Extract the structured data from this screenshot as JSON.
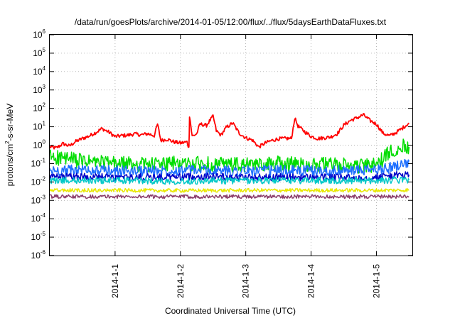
{
  "chart_data": {
    "type": "line",
    "title": "/data/run/goesPlots/archive/2014-01-05/12:00/flux/../flux/5daysEarthDataFluxes.txt",
    "xlabel": "Coordinated Universal Time (UTC)",
    "ylabel_parts": [
      "protons/cm",
      "2",
      "-s-sr-MeV"
    ],
    "x_unit": "days since 2013-12-31T00:00 UTC",
    "xlim": [
      0,
      5.55
    ],
    "x_ticks": [
      {
        "x": 1,
        "label": "2014-1-1"
      },
      {
        "x": 2,
        "label": "2014-1-2"
      },
      {
        "x": 3,
        "label": "2014-1-3"
      },
      {
        "x": 4,
        "label": "2014-1-4"
      },
      {
        "x": 5,
        "label": "2014-1-5"
      }
    ],
    "y_scale": "log",
    "ylim_exp": [
      -6,
      6
    ],
    "y_ticks": [
      {
        "exp": -6,
        "base": "10",
        "sup": "-6"
      },
      {
        "exp": -5,
        "base": "10",
        "sup": "-5"
      },
      {
        "exp": -4,
        "base": "10",
        "sup": "-4"
      },
      {
        "exp": -3,
        "base": "10",
        "sup": "-3"
      },
      {
        "exp": -2,
        "base": "10",
        "sup": "-2"
      },
      {
        "exp": -1,
        "base": "10",
        "sup": "-1"
      },
      {
        "exp": 0,
        "base": "10",
        "sup": "0"
      },
      {
        "exp": 1,
        "base": "10",
        "sup": "1"
      },
      {
        "exp": 2,
        "base": "10",
        "sup": "2"
      },
      {
        "exp": 3,
        "base": "10",
        "sup": "3"
      },
      {
        "exp": 4,
        "base": "10",
        "sup": "4"
      },
      {
        "exp": 5,
        "base": "10",
        "sup": "5"
      },
      {
        "exp": 6,
        "base": "10",
        "sup": "6"
      }
    ],
    "grid": true,
    "series": [
      {
        "color": "#ff0000",
        "x": [
          0,
          0.1,
          0.2,
          0.3,
          0.4,
          0.5,
          0.6,
          0.7,
          0.8,
          0.9,
          1.0,
          1.1,
          1.2,
          1.3,
          1.4,
          1.5,
          1.6,
          1.65,
          1.7,
          1.8,
          1.9,
          2.0,
          2.1,
          2.13,
          2.14,
          2.18,
          2.25,
          2.3,
          2.4,
          2.5,
          2.55,
          2.62,
          2.7,
          2.8,
          2.9,
          3.0,
          3.1,
          3.2,
          3.3,
          3.4,
          3.5,
          3.6,
          3.7,
          3.75,
          3.8,
          3.9,
          4.0,
          4.1,
          4.2,
          4.3,
          4.4,
          4.5,
          4.6,
          4.7,
          4.8,
          4.9,
          5.0,
          5.1,
          5.2,
          5.3,
          5.4,
          5.5
        ],
        "y": [
          0.8,
          0.7,
          1.2,
          0.9,
          1.6,
          2.3,
          3.1,
          4.8,
          8.0,
          5.2,
          2.9,
          3.3,
          3.5,
          4.1,
          3.6,
          4.2,
          3.3,
          14,
          1.8,
          2.1,
          1.5,
          1.3,
          1.5,
          0.7,
          40,
          3.0,
          4.2,
          14,
          12,
          38,
          6,
          3.5,
          9,
          16,
          4.5,
          2.5,
          1.9,
          0.8,
          1.3,
          1.8,
          2.2,
          2.3,
          2.3,
          30,
          11,
          5.5,
          3,
          2.3,
          2.5,
          2.8,
          4.2,
          12,
          22,
          30,
          45,
          22,
          14,
          4.5,
          3.2,
          4.8,
          8.5,
          16
        ]
      },
      {
        "color": "#00dd00",
        "x": [
          0,
          0.5,
          1.0,
          1.5,
          2.0,
          2.5,
          3.0,
          3.5,
          4.0,
          4.5,
          4.9,
          5.0,
          5.1,
          5.2,
          5.3,
          5.4,
          5.5
        ],
        "y": [
          0.25,
          0.13,
          0.1,
          0.09,
          0.1,
          0.09,
          0.08,
          0.1,
          0.09,
          0.08,
          0.07,
          0.1,
          0.17,
          0.4,
          0.7,
          0.9,
          0.8
        ]
      },
      {
        "color": "#1e6fff",
        "x": [
          0,
          0.5,
          1.0,
          1.5,
          2.0,
          2.5,
          3.0,
          3.5,
          4.0,
          4.5,
          5.0,
          5.2,
          5.4,
          5.5
        ],
        "y": [
          0.04,
          0.045,
          0.04,
          0.04,
          0.045,
          0.04,
          0.04,
          0.04,
          0.04,
          0.04,
          0.045,
          0.06,
          0.1,
          0.13
        ]
      },
      {
        "color": "#0000c8",
        "x": [
          0,
          0.5,
          1.0,
          1.5,
          2.0,
          2.5,
          3.0,
          3.5,
          4.0,
          4.5,
          5.0,
          5.2,
          5.4,
          5.5
        ],
        "y": [
          0.018,
          0.02,
          0.017,
          0.018,
          0.019,
          0.02,
          0.018,
          0.018,
          0.018,
          0.017,
          0.018,
          0.022,
          0.024,
          0.025
        ]
      },
      {
        "color": "#00c8c8",
        "x": [
          0,
          1.0,
          2.0,
          3.0,
          4.0,
          5.0,
          5.5
        ],
        "y": [
          0.012,
          0.012,
          0.011,
          0.012,
          0.012,
          0.012,
          0.013
        ]
      },
      {
        "color": "#e8e800",
        "x": [
          0,
          1.0,
          2.0,
          3.0,
          4.0,
          5.0,
          5.5
        ],
        "y": [
          0.0035,
          0.0035,
          0.0034,
          0.0035,
          0.0035,
          0.0035,
          0.0036
        ]
      },
      {
        "color": "#8a3d6a",
        "x": [
          0,
          1.0,
          2.0,
          3.0,
          4.0,
          5.0,
          5.5
        ],
        "y": [
          0.0016,
          0.0016,
          0.0016,
          0.0016,
          0.0016,
          0.0016,
          0.0016
        ]
      }
    ]
  }
}
